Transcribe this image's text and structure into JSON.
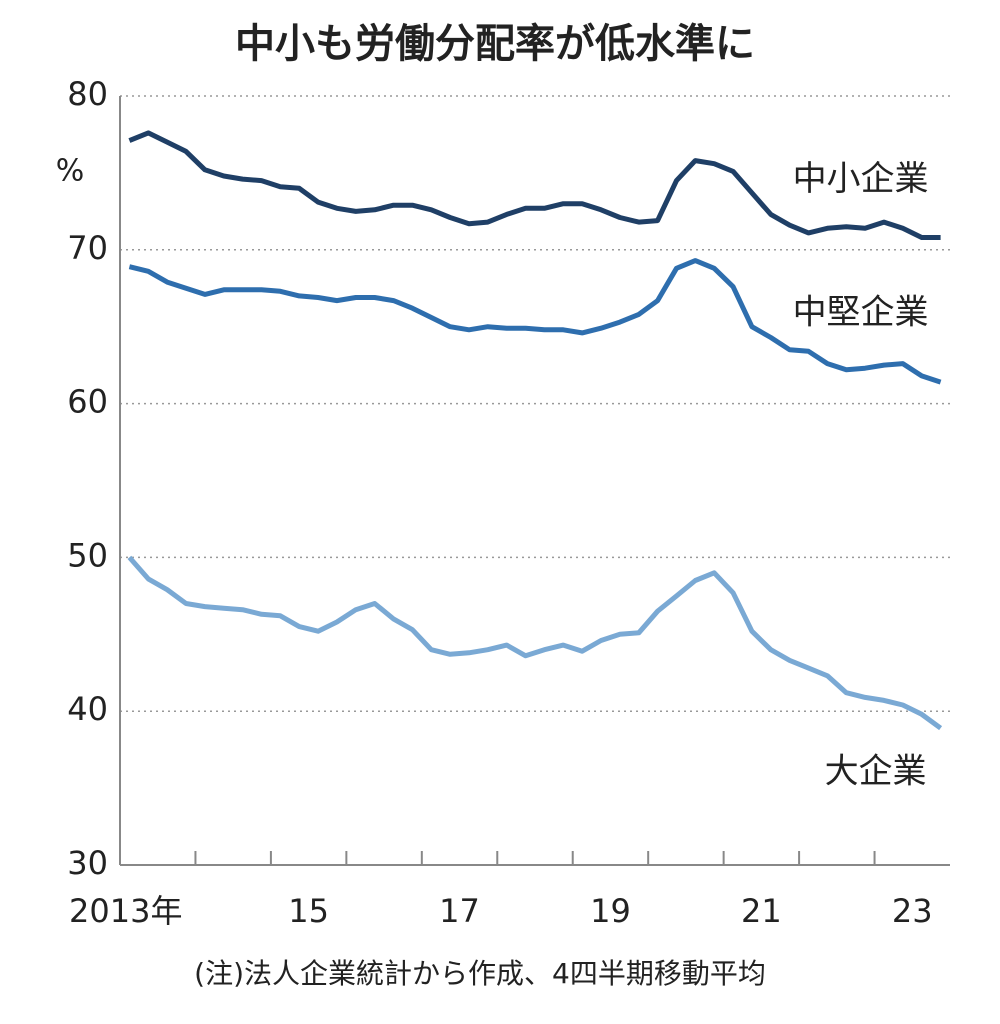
{
  "chart_data": {
    "type": "line",
    "title": "中小も労働分配率が低水準に",
    "y_unit": "%",
    "note": "(注)法人企業統計から作成、4四半期移動平均",
    "xlim": [
      2013,
      2024
    ],
    "xticks": [
      {
        "value": 2013,
        "label": "2013年"
      },
      {
        "value": 2015,
        "label": "15"
      },
      {
        "value": 2017,
        "label": "17"
      },
      {
        "value": 2019,
        "label": "19"
      },
      {
        "value": 2021,
        "label": "21"
      },
      {
        "value": 2023,
        "label": "23"
      }
    ],
    "xticks_minor": [
      2014,
      2015,
      2016,
      2017,
      2018,
      2019,
      2020,
      2021,
      2022,
      2023
    ],
    "ylim": [
      30,
      80
    ],
    "yticks": [
      30,
      40,
      50,
      60,
      70,
      80
    ],
    "grid": true,
    "x": [
      2013.125,
      2013.375,
      2013.625,
      2013.875,
      2014.125,
      2014.375,
      2014.625,
      2014.875,
      2015.125,
      2015.375,
      2015.625,
      2015.875,
      2016.125,
      2016.375,
      2016.625,
      2016.875,
      2017.125,
      2017.375,
      2017.625,
      2017.875,
      2018.125,
      2018.375,
      2018.625,
      2018.875,
      2019.125,
      2019.375,
      2019.625,
      2019.875,
      2020.125,
      2020.375,
      2020.625,
      2020.875,
      2021.125,
      2021.375,
      2021.625,
      2021.875,
      2022.125,
      2022.375,
      2022.625,
      2022.875,
      2023.125,
      2023.375,
      2023.625,
      2023.875
    ],
    "series": [
      {
        "name": "中小企業",
        "color": "#1f3f66",
        "values": [
          77.1,
          77.6,
          77.0,
          76.4,
          75.2,
          74.8,
          74.6,
          74.5,
          74.1,
          74.0,
          73.1,
          72.7,
          72.5,
          72.6,
          72.9,
          72.9,
          72.6,
          72.1,
          71.7,
          71.8,
          72.3,
          72.7,
          72.7,
          73.0,
          73.0,
          72.6,
          72.1,
          71.8,
          71.9,
          74.5,
          75.8,
          75.6,
          75.1,
          73.7,
          72.3,
          71.6,
          71.1,
          71.4,
          71.5,
          71.4,
          71.8,
          71.4,
          70.8,
          70.8
        ]
      },
      {
        "name": "中堅企業",
        "color": "#2e6eae",
        "values": [
          68.9,
          68.6,
          67.9,
          67.5,
          67.1,
          67.4,
          67.4,
          67.4,
          67.3,
          67.0,
          66.9,
          66.7,
          66.9,
          66.9,
          66.7,
          66.2,
          65.6,
          65.0,
          64.8,
          65.0,
          64.9,
          64.9,
          64.8,
          64.8,
          64.6,
          64.9,
          65.3,
          65.8,
          66.7,
          68.8,
          69.3,
          68.8,
          67.6,
          65.0,
          64.3,
          63.5,
          63.4,
          62.6,
          62.2,
          62.3,
          62.5,
          62.6,
          61.8,
          61.4
        ]
      },
      {
        "name": "大企業",
        "color": "#7aa9d4",
        "values": [
          50.0,
          48.6,
          47.9,
          47.0,
          46.8,
          46.7,
          46.6,
          46.3,
          46.2,
          45.5,
          45.2,
          45.8,
          46.6,
          47.0,
          46.0,
          45.3,
          44.0,
          43.7,
          43.8,
          44.0,
          44.3,
          43.6,
          44.0,
          44.3,
          43.9,
          44.6,
          45.0,
          45.1,
          46.5,
          47.5,
          48.5,
          49.0,
          47.7,
          45.2,
          44.0,
          43.3,
          42.8,
          42.3,
          41.2,
          40.9,
          40.7,
          40.4,
          39.8,
          38.9
        ]
      }
    ]
  }
}
